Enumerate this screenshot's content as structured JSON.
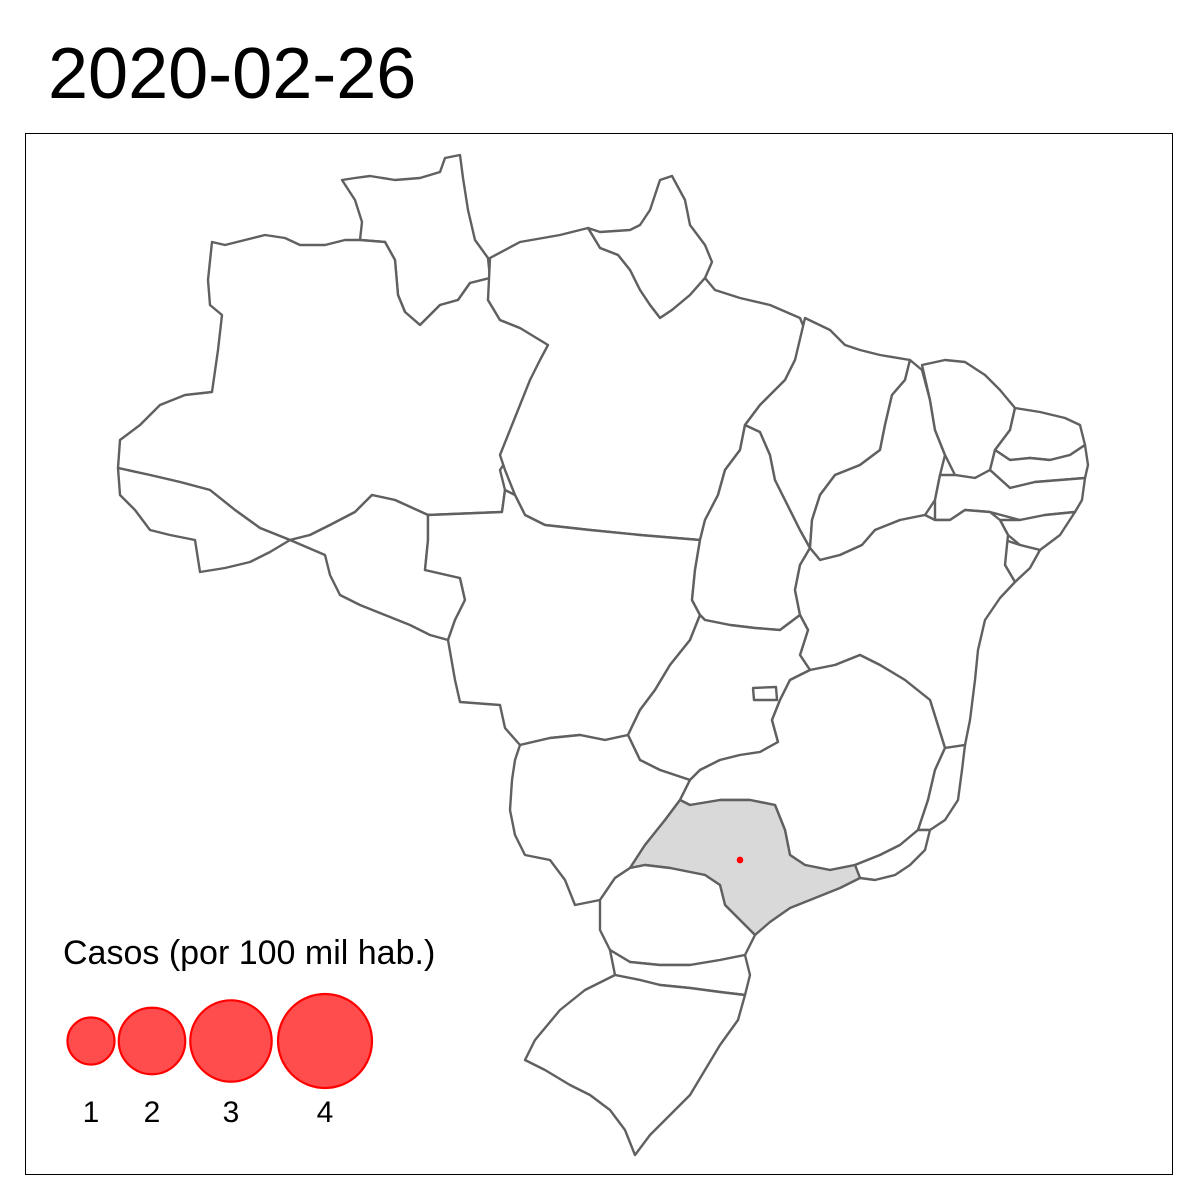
{
  "title": "2020-02-26",
  "colors": {
    "state_fill": "#ffffff",
    "state_outline": "#606060",
    "highlight_fill": "#d9d9d9",
    "bubble_fill": "#ff4d4d",
    "bubble_stroke": "#ff0000"
  },
  "map": {
    "highlighted_states": [
      "SP"
    ],
    "case_markers": [
      {
        "state": "SP",
        "cases_per_100k": 0.02
      }
    ]
  },
  "legend": {
    "title": "Casos (por 100 mil hab.)",
    "entries": [
      {
        "label": "1",
        "value": 1
      },
      {
        "label": "2",
        "value": 2
      },
      {
        "label": "3",
        "value": 3
      },
      {
        "label": "4",
        "value": 4
      }
    ]
  }
}
